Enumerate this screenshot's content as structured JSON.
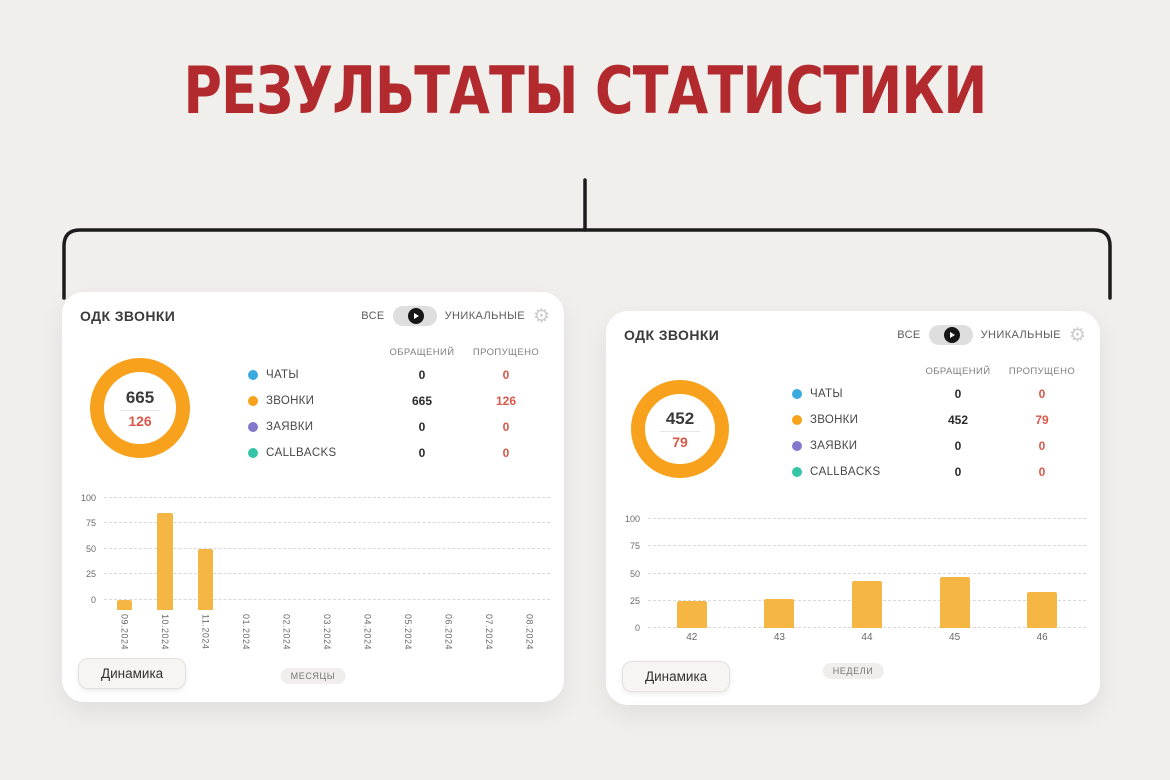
{
  "page": {
    "title": "РЕЗУЛЬТАТЫ СТАТИСТИКИ",
    "colors": {
      "title_red": "#b2292e",
      "background": "#f1efec",
      "donut_ring": "#f7a11c",
      "missed_red": "#d9584a",
      "bar_fill": "#f6b644"
    }
  },
  "icons": {
    "gear": "⚙"
  },
  "panels": [
    {
      "title": "ОДК ЗВОНКИ",
      "toggle": {
        "left": "ВСЕ",
        "right": "УНИКАЛЬНЫЕ"
      },
      "col_headers": {
        "appeals": "ОБРАЩЕНИЙ",
        "missed": "ПРОПУЩЕНО"
      },
      "donut": {
        "total": "665",
        "missed": "126",
        "ring_color": "#f7a11c"
      },
      "legend": [
        {
          "label": "ЧАТЫ",
          "color": "#3aa9e0",
          "appeals": "0",
          "missed": "0"
        },
        {
          "label": "ЗВОНКИ",
          "color": "#f7a21b",
          "appeals": "665",
          "missed": "126"
        },
        {
          "label": "ЗАЯВКИ",
          "color": "#8279cd",
          "appeals": "0",
          "missed": "0"
        },
        {
          "label": "CALLBACKS",
          "color": "#35c4a8",
          "appeals": "0",
          "missed": "0"
        }
      ],
      "footer": {
        "button": "Динамика",
        "axis_unit": "МЕСЯЦЫ"
      }
    },
    {
      "title": "ОДК ЗВОНКИ",
      "toggle": {
        "left": "ВСЕ",
        "right": "УНИКАЛЬНЫЕ"
      },
      "col_headers": {
        "appeals": "ОБРАЩЕНИЙ",
        "missed": "ПРОПУЩЕНО"
      },
      "donut": {
        "total": "452",
        "missed": "79",
        "ring_color": "#f7a11c"
      },
      "legend": [
        {
          "label": "ЧАТЫ",
          "color": "#3aa9e0",
          "appeals": "0",
          "missed": "0"
        },
        {
          "label": "ЗВОНКИ",
          "color": "#f7a21b",
          "appeals": "452",
          "missed": "79"
        },
        {
          "label": "ЗАЯВКИ",
          "color": "#8279cd",
          "appeals": "0",
          "missed": "0"
        },
        {
          "label": "CALLBACKS",
          "color": "#35c4a8",
          "appeals": "0",
          "missed": "0"
        }
      ],
      "footer": {
        "button": "Динамика",
        "axis_unit": "НЕДЕЛИ"
      }
    }
  ],
  "chart_data": [
    {
      "type": "bar",
      "categories": [
        "09.2024",
        "10.2024",
        "11.2024",
        "01.2024",
        "02.2024",
        "03.2024",
        "04.2024",
        "05.2024",
        "06.2024",
        "07.2024",
        "08.2024"
      ],
      "values": [
        0,
        85,
        50,
        null,
        null,
        null,
        null,
        null,
        null,
        null,
        null
      ],
      "yticks": [
        0,
        25,
        50,
        75,
        100
      ],
      "ylim": [
        -10,
        100
      ],
      "bar_color": "#f6b644",
      "rotated_labels": true,
      "grid": "dashed",
      "xlabel": "МЕСЯЦЫ",
      "ylabel": ""
    },
    {
      "type": "bar",
      "categories": [
        "42",
        "43",
        "44",
        "45",
        "46"
      ],
      "values": [
        25,
        27,
        43,
        47,
        33
      ],
      "yticks": [
        0,
        25,
        50,
        75,
        100
      ],
      "ylim": [
        0,
        100
      ],
      "bar_color": "#f6b644",
      "rotated_labels": false,
      "grid": "dashed",
      "xlabel": "НЕДЕЛИ",
      "ylabel": ""
    }
  ]
}
